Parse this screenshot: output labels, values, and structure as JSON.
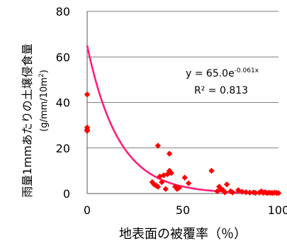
{
  "chart_data": {
    "type": "scatter",
    "title": "",
    "xlabel": "地表面の被覆率（％）",
    "ylabel": "雨量1mmあたりの土壌侵食量",
    "ylabel_unit": "(g/mm/10m",
    "ylabel_unit_sup": "2",
    "ylabel_unit_close": ")",
    "xlim": [
      0,
      100
    ],
    "ylim": [
      0,
      80
    ],
    "x_ticks": [
      "0",
      "50",
      "100"
    ],
    "y_ticks": [
      "0",
      "20",
      "40",
      "60",
      "80"
    ],
    "grid": "horizontal",
    "marker_color": "#ff0000",
    "trend_color": "#ff1f7a",
    "trendline": {
      "type": "exponential",
      "a": 65.0,
      "b": -0.061,
      "equation_text": "y = 65.0e",
      "equation_exponent": "-0.061x",
      "r2_text": "R² = 0.813"
    },
    "points": [
      {
        "x": 0,
        "y": 43.5
      },
      {
        "x": 0,
        "y": 29
      },
      {
        "x": 0,
        "y": 28
      },
      {
        "x": 0,
        "y": 27.5
      },
      {
        "x": 34,
        "y": 5
      },
      {
        "x": 35,
        "y": 4
      },
      {
        "x": 36,
        "y": 3.5
      },
      {
        "x": 37,
        "y": 3
      },
      {
        "x": 37,
        "y": 21
      },
      {
        "x": 38,
        "y": 7.5
      },
      {
        "x": 39,
        "y": 5
      },
      {
        "x": 40,
        "y": 8
      },
      {
        "x": 41,
        "y": 2
      },
      {
        "x": 42,
        "y": 8.5
      },
      {
        "x": 43,
        "y": 10
      },
      {
        "x": 43,
        "y": 17.5
      },
      {
        "x": 44,
        "y": 9
      },
      {
        "x": 46,
        "y": 3
      },
      {
        "x": 47,
        "y": 2
      },
      {
        "x": 48,
        "y": 2.5
      },
      {
        "x": 51,
        "y": 7
      },
      {
        "x": 53,
        "y": 4.5
      },
      {
        "x": 65,
        "y": 10
      },
      {
        "x": 68,
        "y": 1
      },
      {
        "x": 69,
        "y": 3
      },
      {
        "x": 70,
        "y": 2
      },
      {
        "x": 71,
        "y": 1.5
      },
      {
        "x": 72,
        "y": 0.5
      },
      {
        "x": 73,
        "y": 4
      },
      {
        "x": 75,
        "y": 1
      },
      {
        "x": 76,
        "y": 0.5
      },
      {
        "x": 79,
        "y": 1.5
      },
      {
        "x": 81,
        "y": 0.8
      },
      {
        "x": 83,
        "y": 0.6
      },
      {
        "x": 85,
        "y": 0.4
      },
      {
        "x": 87,
        "y": 0.5
      },
      {
        "x": 88,
        "y": 0.3
      },
      {
        "x": 90,
        "y": 0.4
      },
      {
        "x": 91,
        "y": 1
      },
      {
        "x": 92,
        "y": 0.3
      },
      {
        "x": 93,
        "y": 0.6
      },
      {
        "x": 94,
        "y": 0.2
      },
      {
        "x": 95,
        "y": 0.4
      },
      {
        "x": 96,
        "y": 0.3
      },
      {
        "x": 97,
        "y": 0.2
      },
      {
        "x": 98,
        "y": 0.4
      },
      {
        "x": 99,
        "y": 0.3
      },
      {
        "x": 100,
        "y": 0.2
      }
    ]
  }
}
